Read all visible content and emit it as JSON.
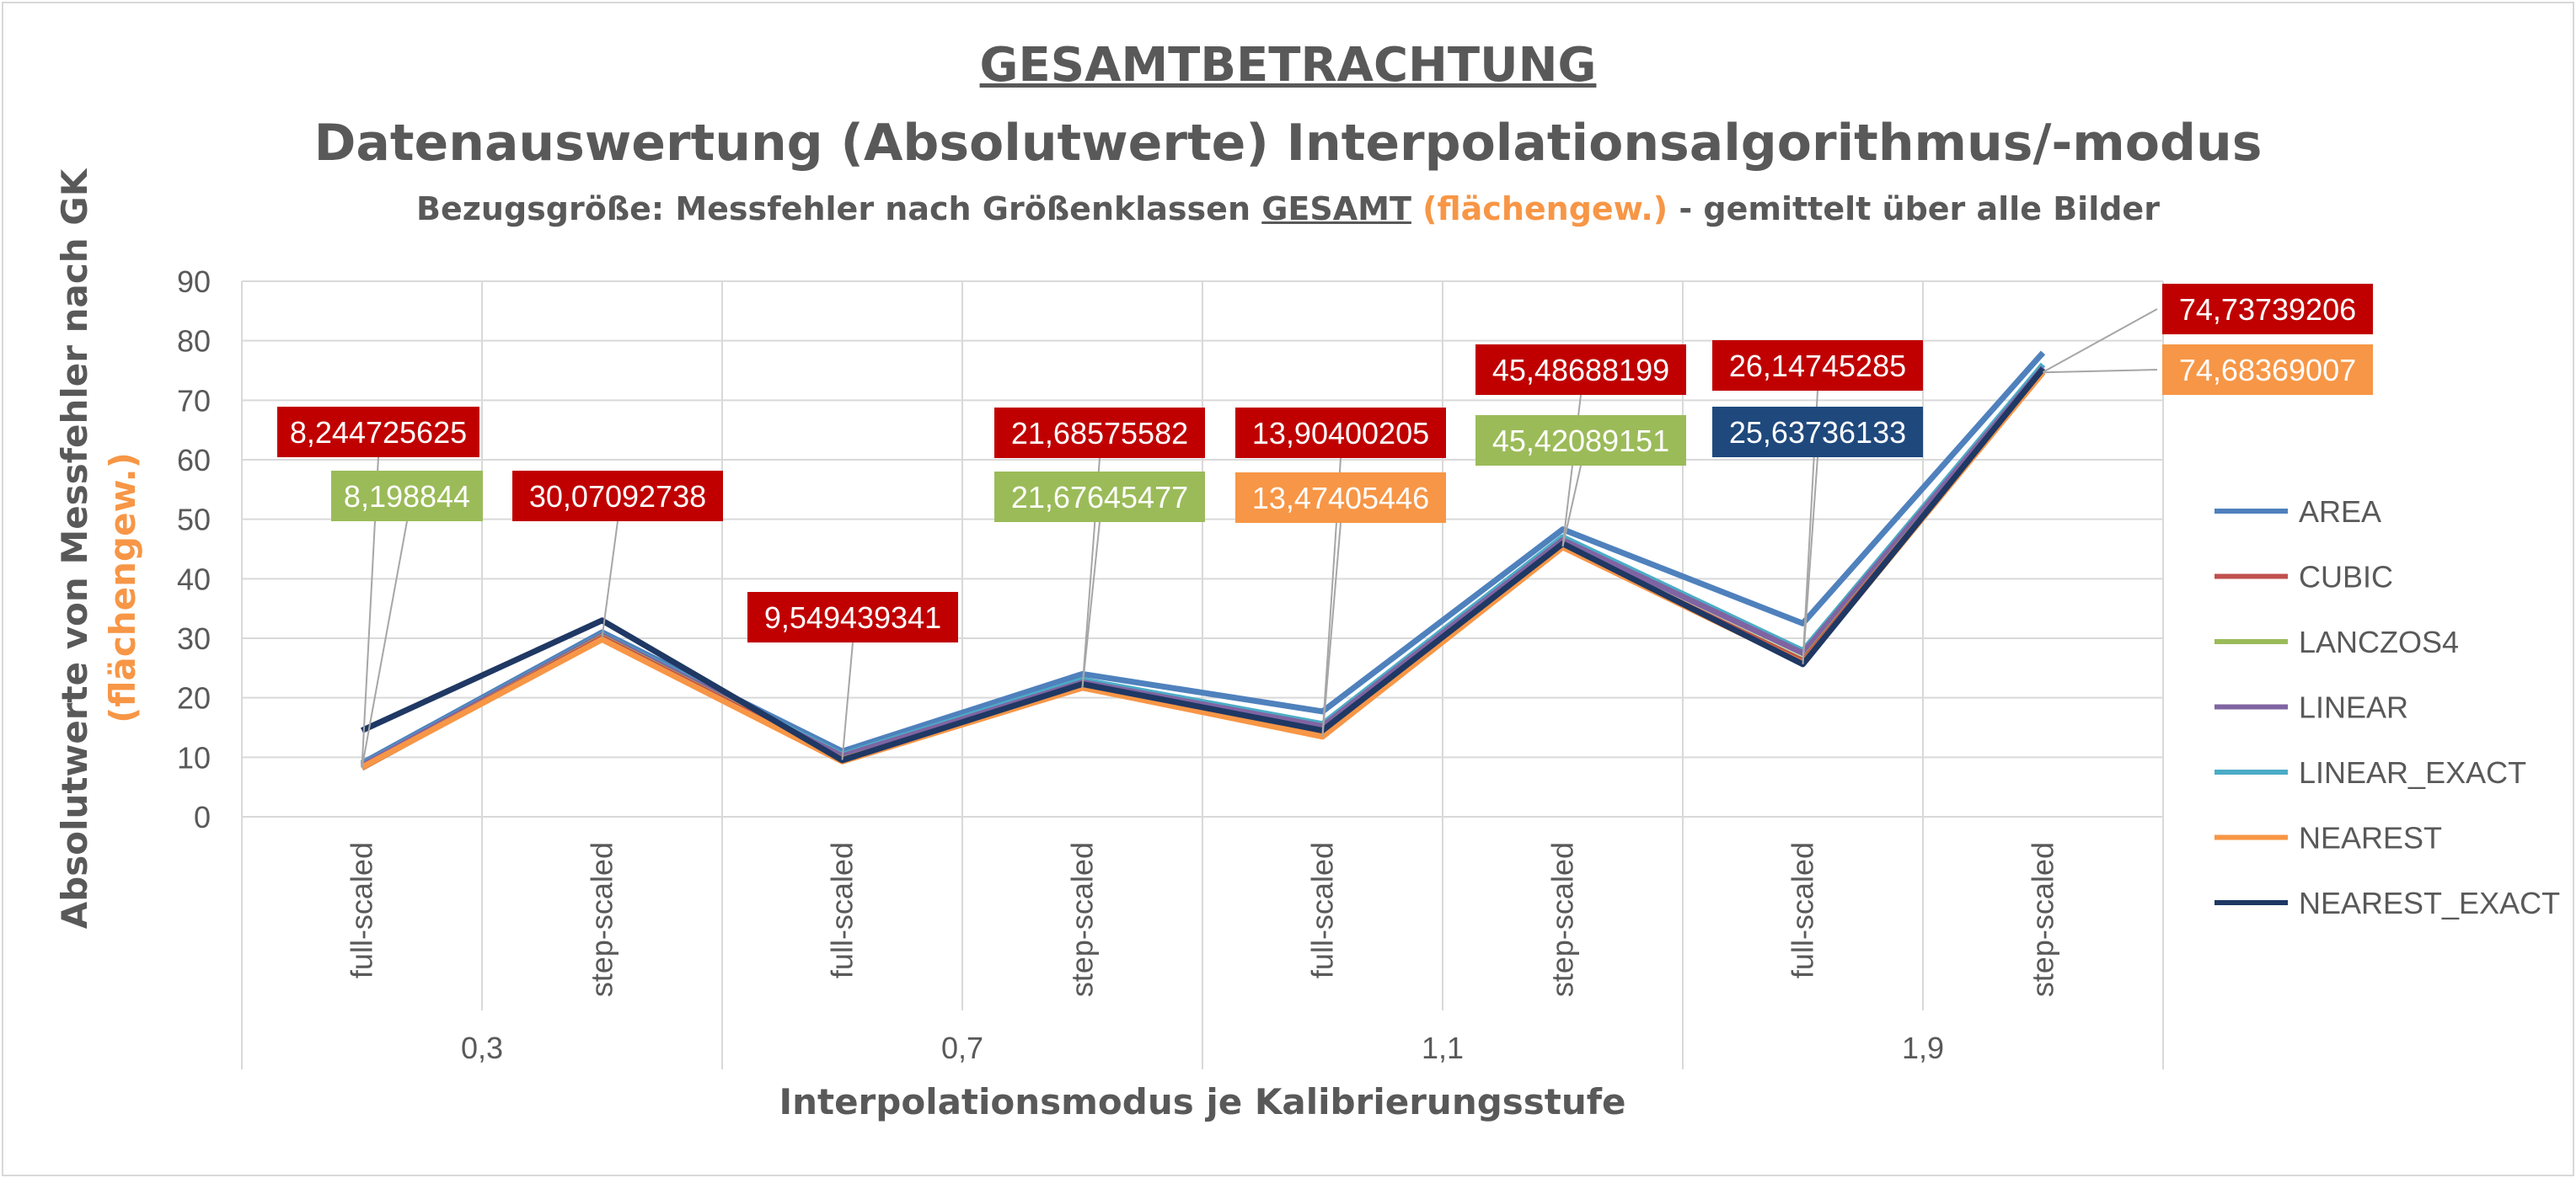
{
  "title": "GESAMTBETRACHTUNG",
  "subtitle1": "Datenauswertung (Absolutwerte) Interpolationsalgorithmus/-modus",
  "subtitle2": {
    "part1": "Bezugsgröße: Messfehler nach Größenklassen ",
    "part2": "GESAMT",
    "part3": " (flächengew.)",
    "part4": " - gemittelt über alle Bilder"
  },
  "colors": {
    "label_red": "#c00000",
    "label_green": "#9bbb59",
    "label_orange": "#f79646",
    "label_navy": "#1f497d",
    "axis_text": "#595959",
    "grid": "#d9d9d9"
  },
  "chart_data": {
    "type": "line",
    "title": "GESAMTBETRACHTUNG",
    "ylabel": "Absolutwerte von Messfehler nach GK",
    "ylabel2": "(flächengew.)",
    "xlabel": "Interpolationsmodus je Kalibrierungsstufe",
    "ylim": [
      0,
      90
    ],
    "yticks": [
      0,
      10,
      20,
      30,
      40,
      50,
      60,
      70,
      80,
      90
    ],
    "grid": true,
    "legend_position": "right",
    "categories": [
      "full-scaled",
      "step-scaled",
      "full-scaled",
      "step-scaled",
      "full-scaled",
      "step-scaled",
      "full-scaled",
      "step-scaled"
    ],
    "groups": [
      "0,3",
      "0,7",
      "1,1",
      "1,9"
    ],
    "series": [
      {
        "name": "AREA",
        "color": "#4f81bd",
        "values": [
          9.0,
          31.0,
          11.0,
          24.0,
          17.7,
          48.3,
          32.5,
          78.0
        ]
      },
      {
        "name": "CUBIC",
        "color": "#c0504d",
        "values": [
          8.24,
          30.07,
          9.55,
          21.69,
          13.9,
          45.49,
          26.15,
          74.74
        ]
      },
      {
        "name": "LANCZOS4",
        "color": "#9bbb59",
        "values": [
          8.2,
          30.2,
          9.6,
          21.68,
          14.0,
          45.42,
          26.3,
          74.7
        ]
      },
      {
        "name": "LINEAR",
        "color": "#8064a2",
        "values": [
          8.6,
          30.5,
          10.2,
          22.6,
          15.2,
          46.5,
          27.5,
          75.5
        ]
      },
      {
        "name": "LINEAR_EXACT",
        "color": "#4bacc6",
        "values": [
          8.7,
          30.6,
          10.4,
          23.0,
          15.6,
          47.0,
          27.9,
          76.0
        ]
      },
      {
        "name": "NEAREST",
        "color": "#f79646",
        "values": [
          8.3,
          29.8,
          9.3,
          21.7,
          13.47,
          45.3,
          25.8,
          74.68
        ]
      },
      {
        "name": "NEAREST_EXACT",
        "color": "#1f3864",
        "values": [
          14.5,
          33.0,
          9.5,
          22.3,
          14.5,
          45.9,
          25.64,
          75.3
        ]
      }
    ],
    "annotations": [
      {
        "text": "8,244725625",
        "color": "red",
        "x": 0,
        "y": 8.244725625
      },
      {
        "text": "8,198844",
        "color": "green",
        "x": 0,
        "y": 8.198844
      },
      {
        "text": "30,07092738",
        "color": "red",
        "x": 1,
        "y": 30.07092738
      },
      {
        "text": "9,549439341",
        "color": "red",
        "x": 2,
        "y": 9.549439341
      },
      {
        "text": "21,68575582",
        "color": "red",
        "x": 3,
        "y": 21.68575582
      },
      {
        "text": "21,67645477",
        "color": "green",
        "x": 3,
        "y": 21.67645477
      },
      {
        "text": "13,90400205",
        "color": "red",
        "x": 4,
        "y": 13.90400205
      },
      {
        "text": "13,47405446",
        "color": "orange",
        "x": 4,
        "y": 13.47405446
      },
      {
        "text": "45,48688199",
        "color": "red",
        "x": 5,
        "y": 45.48688199
      },
      {
        "text": "45,42089151",
        "color": "green",
        "x": 5,
        "y": 45.42089151
      },
      {
        "text": "26,14745285",
        "color": "red",
        "x": 6,
        "y": 26.14745285
      },
      {
        "text": "25,63736133",
        "color": "navy",
        "x": 6,
        "y": 25.63736133
      },
      {
        "text": "74,73739206",
        "color": "red",
        "x": 7,
        "y": 74.73739206
      },
      {
        "text": "74,68369007",
        "color": "orange",
        "x": 7,
        "y": 74.68369007
      }
    ]
  }
}
